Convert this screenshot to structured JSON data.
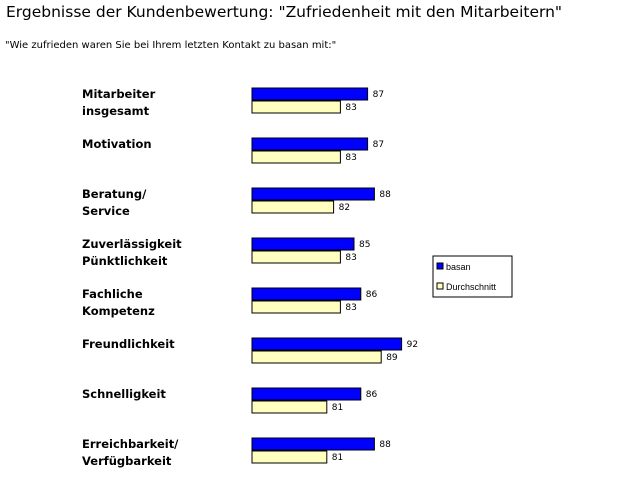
{
  "title": "Ergebnisse der Kundenbewertung: \"Zufriedenheit mit den Mitarbeitern\"",
  "subtitle": "\"Wie zufrieden waren Sie bei Ihrem letzten Kontakt zu basan mit:\"",
  "colors": {
    "basan": "#0000ff",
    "durchschnitt": "#ffffc0",
    "outline": "#000000"
  },
  "chart_data": {
    "type": "bar",
    "orientation": "horizontal",
    "title": "Ergebnisse der Kundenbewertung: \"Zufriedenheit mit den Mitarbeitern\"",
    "subtitle": "\"Wie zufrieden waren Sie bei Ihrem letzten Kontakt zu basan mit:\"",
    "categories": [
      [
        "Mitarbeiter",
        "insgesamt"
      ],
      [
        "Motivation"
      ],
      [
        "Beratung/",
        "Service"
      ],
      [
        "Zuverlässigkeit",
        "Pünktlichkeit"
      ],
      [
        "Fachliche",
        "Kompetenz"
      ],
      [
        "Freundlichkeit"
      ],
      [
        "Schnelligkeit"
      ],
      [
        "Erreichbarkeit/",
        "Verfügbarkeit"
      ]
    ],
    "series": [
      {
        "name": "basan",
        "values": [
          87,
          87,
          88,
          85,
          86,
          92,
          86,
          88
        ]
      },
      {
        "name": "Durchschnitt",
        "values": [
          83,
          83,
          82,
          83,
          83,
          89,
          81,
          81
        ]
      }
    ],
    "legend_position": "right",
    "grid": false
  }
}
